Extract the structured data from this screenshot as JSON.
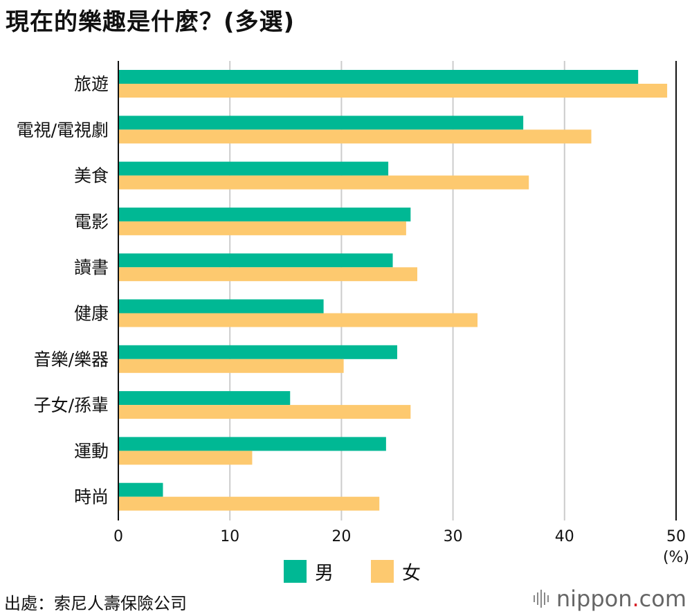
{
  "title": "現在的樂趣是什麼？(多選)",
  "legend": {
    "male": "男",
    "female": "女"
  },
  "colors": {
    "male": "#00b894",
    "female": "#fdc96f",
    "grid": "#cccccc",
    "axis": "#111111"
  },
  "source": "出處：索尼人壽保險公司",
  "brand": {
    "name_main": "nippon",
    "name_dot": ".",
    "name_tld": "com"
  },
  "chart_data": {
    "type": "bar",
    "orientation": "horizontal",
    "title": "現在的樂趣是什麼？(多選)",
    "categories": [
      "旅遊",
      "電視/電視劇",
      "美食",
      "電影",
      "讀書",
      "健康",
      "音樂/樂器",
      "子女/孫輩",
      "運動",
      "時尚"
    ],
    "series": [
      {
        "name": "男",
        "values": [
          46.6,
          36.3,
          24.2,
          26.2,
          24.6,
          18.4,
          25.0,
          15.4,
          24.0,
          4.0
        ]
      },
      {
        "name": "女",
        "values": [
          49.2,
          42.4,
          36.8,
          25.8,
          26.8,
          32.2,
          20.2,
          26.2,
          12.0,
          23.4
        ]
      }
    ],
    "xlim": [
      0,
      50
    ],
    "xticks": [
      0,
      10,
      20,
      30,
      40,
      50
    ],
    "xunit": "(%)",
    "grid": true,
    "legend_position": "bottom-center"
  }
}
